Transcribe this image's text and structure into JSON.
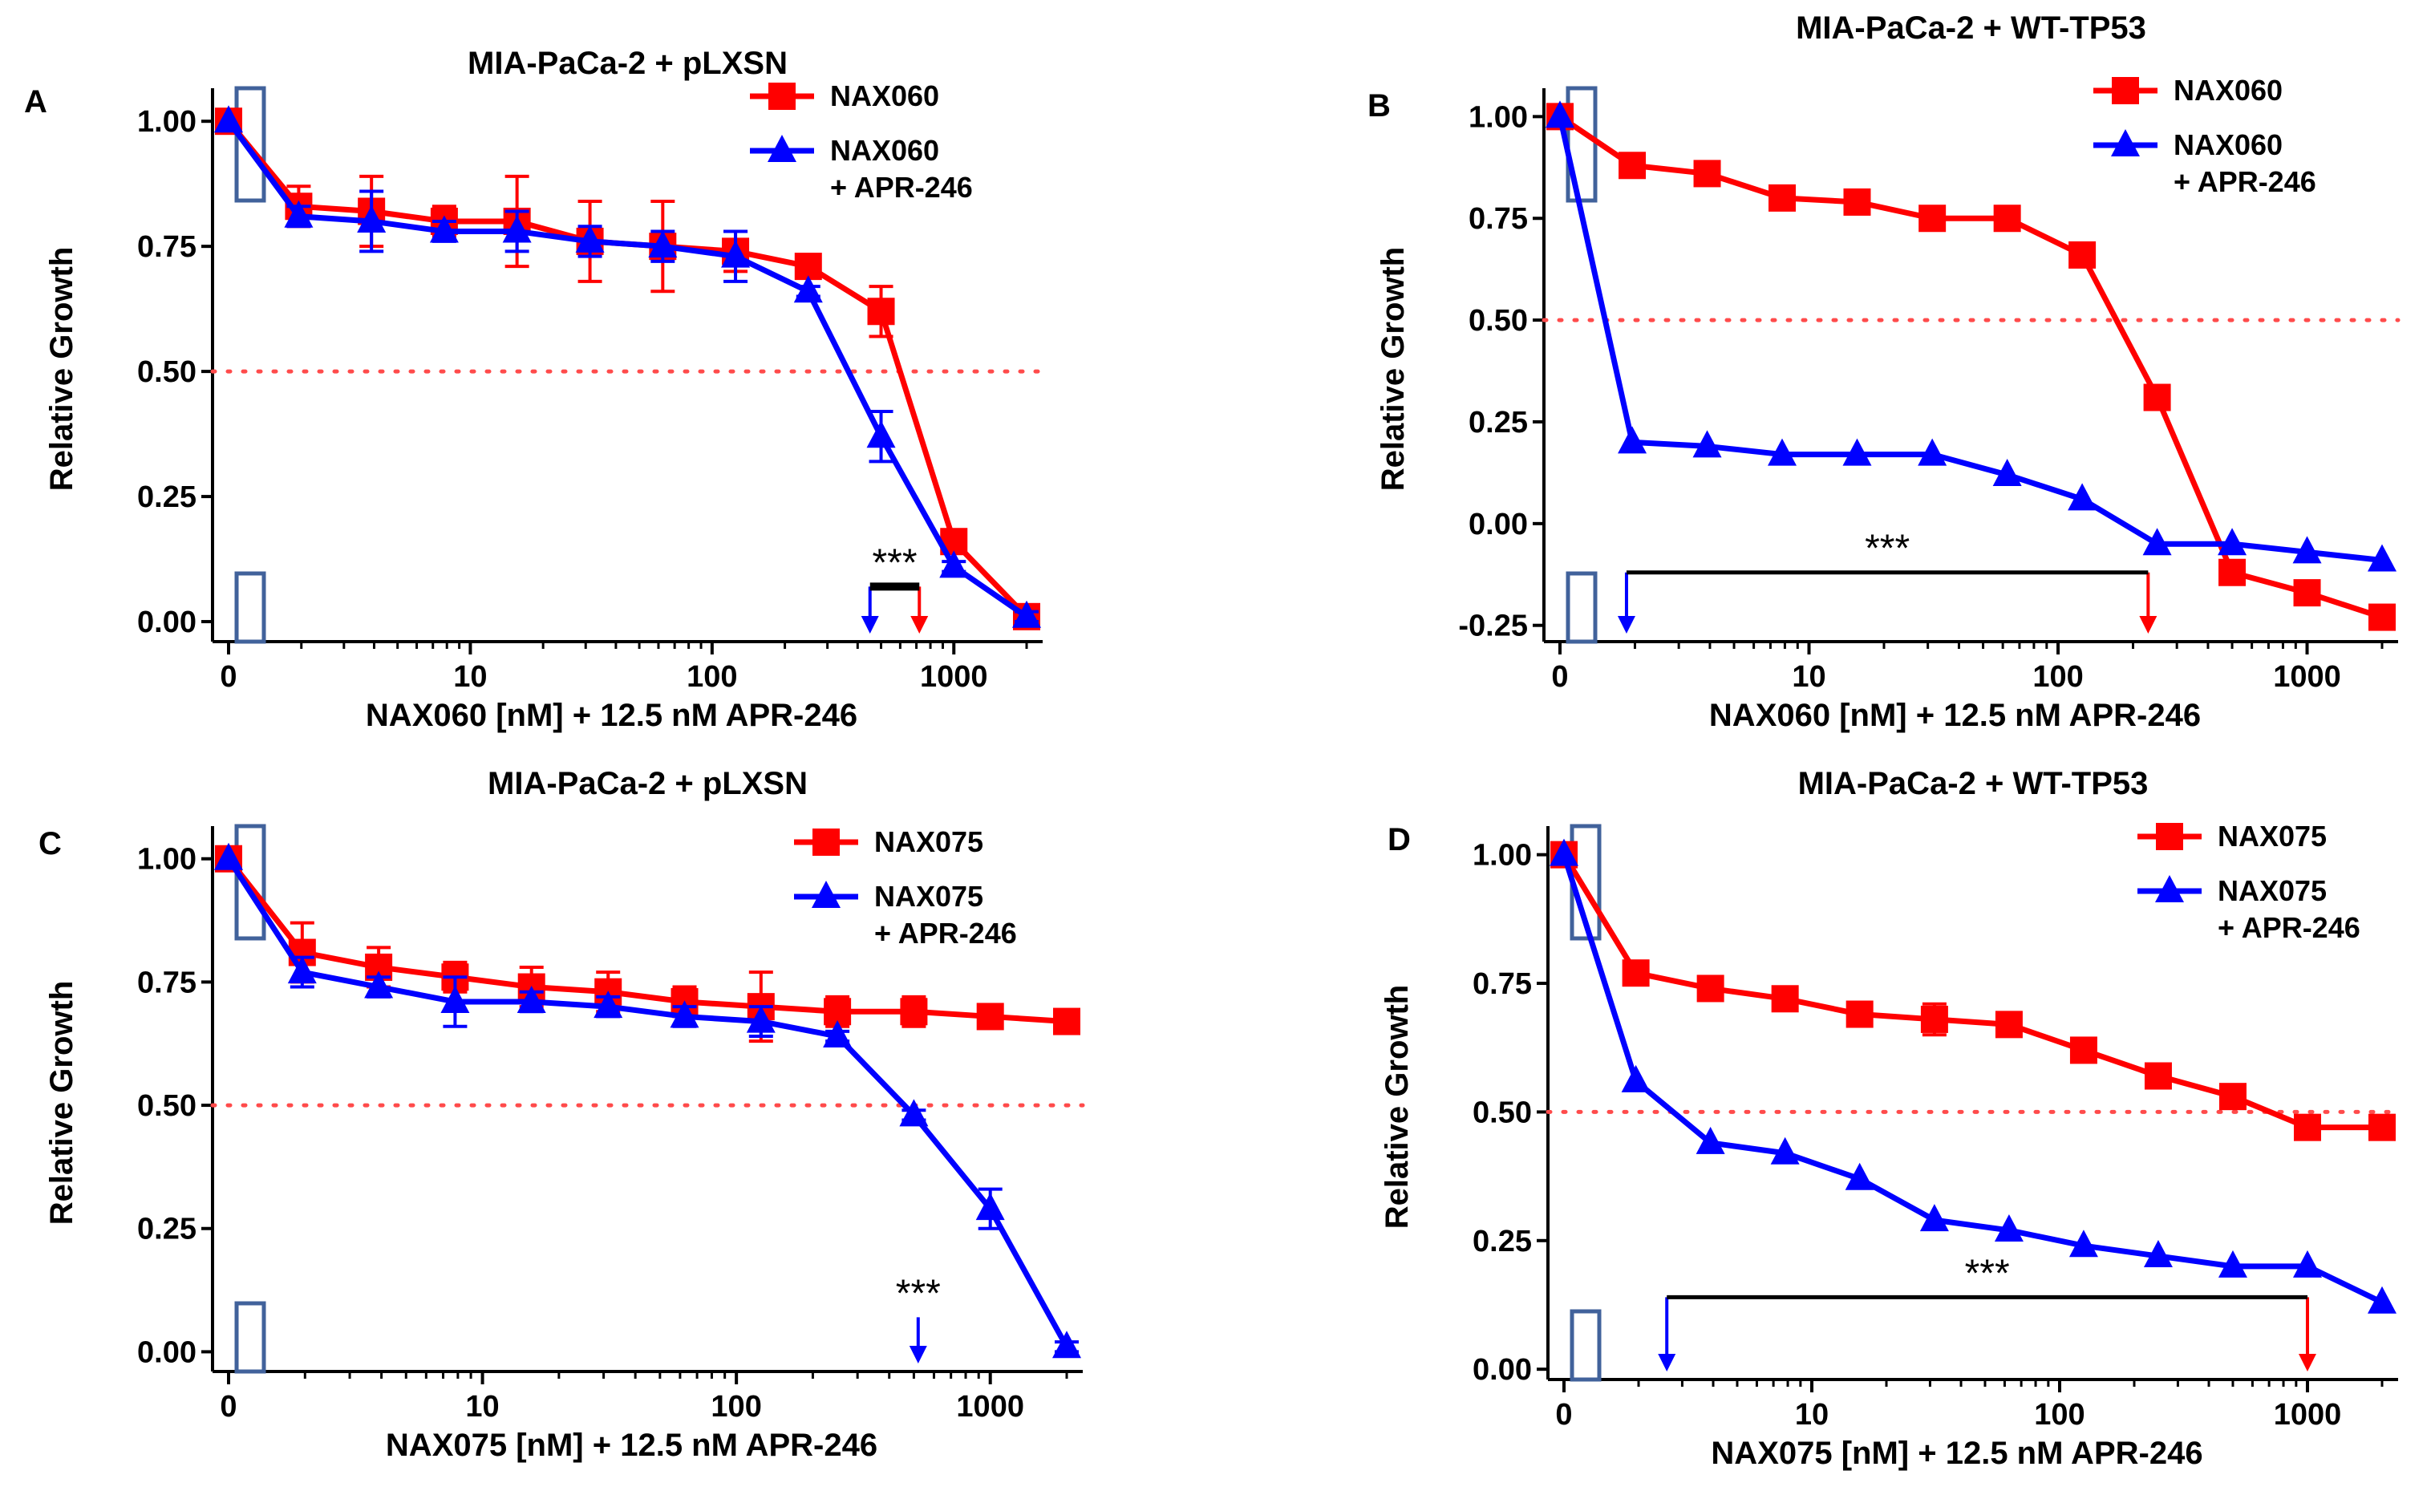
{
  "figure": {
    "description_panels": [
      "A",
      "B",
      "C",
      "D"
    ]
  },
  "chart_data": [
    {
      "panel": "A",
      "type": "line",
      "title": "MIA-PaCa-2 + pLXSN",
      "xlabel": "NAX060 [nM] + 12.5 nM APR-246",
      "ylabel": "Relative Growth",
      "xscale": "log",
      "xlim": [
        1,
        2000
      ],
      "ylim": [
        -0.04,
        1.05
      ],
      "xticks": [
        {
          "v": 1,
          "label": "0"
        },
        {
          "v": 10,
          "label": "10"
        },
        {
          "v": 100,
          "label": "100"
        },
        {
          "v": 1000,
          "label": "1000"
        }
      ],
      "yticks": [
        {
          "v": 0,
          "label": "0.00"
        },
        {
          "v": 0.25,
          "label": "0.25"
        },
        {
          "v": 0.5,
          "label": "0.50"
        },
        {
          "v": 0.75,
          "label": "0.75"
        },
        {
          "v": 1,
          "label": "1.00"
        }
      ],
      "reference_line": 0.5,
      "x": [
        1,
        1.95,
        3.9,
        7.8,
        15.6,
        31.25,
        62.5,
        125,
        250,
        500,
        1000,
        2000
      ],
      "series": [
        {
          "name": "NAX060",
          "color": "#ff0000",
          "marker": "square",
          "values": [
            1.0,
            0.83,
            0.82,
            0.8,
            0.8,
            0.76,
            0.75,
            0.74,
            0.71,
            0.62,
            0.16,
            0.01
          ],
          "errors": [
            0,
            0.04,
            0.07,
            0.03,
            0.09,
            0.08,
            0.09,
            0.04,
            0.02,
            0.05,
            0.02,
            0.01
          ]
        },
        {
          "name": "NAX060\n+ APR-246",
          "color": "#0000ff",
          "marker": "triangle",
          "values": [
            1.0,
            0.81,
            0.8,
            0.78,
            0.78,
            0.76,
            0.75,
            0.73,
            0.66,
            0.37,
            0.11,
            0.01
          ],
          "errors": [
            0,
            0.02,
            0.06,
            0.02,
            0.04,
            0.03,
            0.03,
            0.05,
            0.01,
            0.05,
            0.01,
            0.01
          ]
        }
      ],
      "legend": [
        "NAX060",
        "NAX060",
        "+ APR-246"
      ],
      "arrows": [
        {
          "x": 450,
          "color": "#0000ff"
        },
        {
          "x": 720,
          "color": "#ff0000"
        }
      ],
      "sig_bar": {
        "label": "***",
        "x1": 450,
        "x2": 720,
        "y": 0.07,
        "thick": true
      }
    },
    {
      "panel": "B",
      "type": "line",
      "title": "MIA-PaCa-2 + WT-TP53",
      "xlabel": "NAX060 [nM] + 12.5 nM APR-246",
      "ylabel": "Relative Growth",
      "xscale": "log",
      "xlim": [
        1,
        2000
      ],
      "ylim": [
        -0.29,
        1.05
      ],
      "xticks": [
        {
          "v": 1,
          "label": "0"
        },
        {
          "v": 10,
          "label": "10"
        },
        {
          "v": 100,
          "label": "100"
        },
        {
          "v": 1000,
          "label": "1000"
        }
      ],
      "yticks": [
        {
          "v": -0.25,
          "label": "-0.25"
        },
        {
          "v": 0,
          "label": "0.00"
        },
        {
          "v": 0.25,
          "label": "0.25"
        },
        {
          "v": 0.5,
          "label": "0.50"
        },
        {
          "v": 0.75,
          "label": "0.75"
        },
        {
          "v": 1,
          "label": "1.00"
        }
      ],
      "reference_line": 0.5,
      "x": [
        1,
        1.95,
        3.9,
        7.8,
        15.6,
        31.25,
        62.5,
        125,
        250,
        500,
        1000,
        2000
      ],
      "series": [
        {
          "name": "NAX060",
          "color": "#ff0000",
          "marker": "square",
          "values": [
            1.0,
            0.88,
            0.86,
            0.8,
            0.79,
            0.75,
            0.75,
            0.66,
            0.31,
            -0.12,
            -0.17,
            -0.23
          ],
          "errors": [
            0,
            0,
            0,
            0,
            0,
            0,
            0,
            0,
            0,
            0,
            0,
            0
          ]
        },
        {
          "name": "NAX060\n+ APR-246",
          "color": "#0000ff",
          "marker": "triangle",
          "values": [
            1.0,
            0.2,
            0.19,
            0.17,
            0.17,
            0.17,
            0.12,
            0.06,
            -0.05,
            -0.05,
            -0.07,
            -0.09
          ],
          "errors": [
            0,
            0,
            0,
            0,
            0,
            0,
            0,
            0,
            0,
            0,
            0,
            0
          ]
        }
      ],
      "legend": [
        "NAX060",
        "NAX060",
        "+ APR-246"
      ],
      "arrows": [
        {
          "x": 1.85,
          "color": "#0000ff"
        },
        {
          "x": 230,
          "color": "#ff0000"
        }
      ],
      "sig_bar": {
        "label": "***",
        "x1": 1.85,
        "x2": 230,
        "y": -0.12,
        "thick": false
      }
    },
    {
      "panel": "C",
      "type": "line",
      "title": "MIA-PaCa-2 + pLXSN",
      "xlabel": "NAX075 [nM] + 12.5 nM APR-246",
      "ylabel": "Relative Growth",
      "xscale": "log",
      "xlim": [
        1,
        2000
      ],
      "ylim": [
        -0.04,
        1.05
      ],
      "xticks": [
        {
          "v": 1,
          "label": "0"
        },
        {
          "v": 10,
          "label": "10"
        },
        {
          "v": 100,
          "label": "100"
        },
        {
          "v": 1000,
          "label": "1000"
        }
      ],
      "yticks": [
        {
          "v": 0,
          "label": "0.00"
        },
        {
          "v": 0.25,
          "label": "0.25"
        },
        {
          "v": 0.5,
          "label": "0.50"
        },
        {
          "v": 0.75,
          "label": "0.75"
        },
        {
          "v": 1,
          "label": "1.00"
        }
      ],
      "reference_line": 0.5,
      "x": [
        1,
        1.95,
        3.9,
        7.8,
        15.6,
        31.25,
        62.5,
        125,
        250,
        500,
        1000,
        2000
      ],
      "series": [
        {
          "name": "NAX075",
          "color": "#ff0000",
          "marker": "square",
          "values": [
            1.0,
            0.81,
            0.78,
            0.76,
            0.74,
            0.73,
            0.71,
            0.7,
            0.69,
            0.69,
            0.68,
            0.67
          ],
          "errors": [
            0,
            0.06,
            0.04,
            0.03,
            0.04,
            0.04,
            0.03,
            0.07,
            0.03,
            0.03,
            0.02,
            0.01
          ]
        },
        {
          "name": "NAX075\n+ APR-246",
          "color": "#0000ff",
          "marker": "triangle",
          "values": [
            1.0,
            0.77,
            0.74,
            0.71,
            0.71,
            0.7,
            0.68,
            0.67,
            0.64,
            0.48,
            0.29,
            0.01
          ],
          "errors": [
            0,
            0.03,
            0.02,
            0.05,
            0.02,
            0.02,
            0.02,
            0.03,
            0.01,
            0.01,
            0.04,
            0.01
          ]
        }
      ],
      "legend": [
        "NAX075",
        "NAX075",
        "+ APR-246"
      ],
      "arrows": [
        {
          "x": 520,
          "color": "#0000ff"
        }
      ],
      "sig_bar": {
        "label": "***",
        "x1": 520,
        "x2": 520,
        "y": 0.07,
        "thick": false,
        "no_bar": true
      }
    },
    {
      "panel": "D",
      "type": "line",
      "title": "MIA-PaCa-2 + WT-TP53",
      "xlabel": "NAX075 [nM] + 12.5 nM APR-246",
      "ylabel": "Relative Growth",
      "xscale": "log",
      "xlim": [
        1,
        2000
      ],
      "ylim": [
        -0.02,
        1.04
      ],
      "xticks": [
        {
          "v": 1,
          "label": "0"
        },
        {
          "v": 10,
          "label": "10"
        },
        {
          "v": 100,
          "label": "100"
        },
        {
          "v": 1000,
          "label": "1000"
        }
      ],
      "yticks": [
        {
          "v": 0,
          "label": "0.00"
        },
        {
          "v": 0.25,
          "label": "0.25"
        },
        {
          "v": 0.5,
          "label": "0.50"
        },
        {
          "v": 0.75,
          "label": "0.75"
        },
        {
          "v": 1,
          "label": "1.00"
        }
      ],
      "reference_line": 0.5,
      "x": [
        1,
        1.95,
        3.9,
        7.8,
        15.6,
        31.25,
        62.5,
        125,
        250,
        500,
        1000,
        2000
      ],
      "series": [
        {
          "name": "NAX075",
          "color": "#ff0000",
          "marker": "square",
          "values": [
            1.0,
            0.77,
            0.74,
            0.72,
            0.69,
            0.68,
            0.67,
            0.62,
            0.57,
            0.53,
            0.47,
            0.47
          ],
          "errors": [
            0,
            0,
            0,
            0.02,
            0.02,
            0.03,
            0,
            0,
            0,
            0.02,
            0,
            0.01
          ]
        },
        {
          "name": "NAX075\n+ APR-246",
          "color": "#0000ff",
          "marker": "triangle",
          "values": [
            1.0,
            0.56,
            0.44,
            0.42,
            0.37,
            0.29,
            0.27,
            0.24,
            0.22,
            0.2,
            0.2,
            0.13
          ],
          "errors": [
            0,
            0,
            0,
            0,
            0,
            0,
            0,
            0,
            0,
            0,
            0,
            0
          ]
        }
      ],
      "legend": [
        "NAX075",
        "NAX075",
        "+ APR-246"
      ],
      "arrows": [
        {
          "x": 2.6,
          "color": "#0000ff"
        },
        {
          "x": 1000,
          "color": "#ff0000"
        }
      ],
      "sig_bar": {
        "label": "***",
        "x1": 2.6,
        "x2": 1000,
        "y": 0.14,
        "thick": false
      }
    }
  ]
}
